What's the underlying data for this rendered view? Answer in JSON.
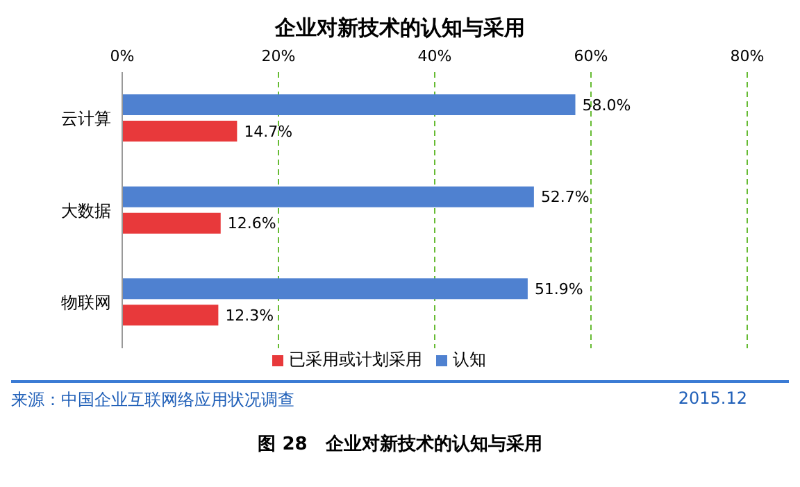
{
  "chart_data": {
    "type": "bar",
    "orientation": "horizontal",
    "title": "企业对新技术的认知与采用",
    "categories": [
      "云计算",
      "大数据",
      "物联网"
    ],
    "series": [
      {
        "name": "认知",
        "color": "#4f81d0",
        "values": [
          58.0,
          52.7,
          51.9
        ],
        "value_labels": [
          "58.0%",
          "52.7%",
          "51.9%"
        ]
      },
      {
        "name": "已采用或计划采用",
        "color": "#e8393b",
        "values": [
          14.7,
          12.6,
          12.3
        ],
        "value_labels": [
          "14.7%",
          "12.6%",
          "12.3%"
        ]
      }
    ],
    "xlim": [
      0,
      80
    ],
    "xticks": [
      {
        "value": 0,
        "label": "0%"
      },
      {
        "value": 20,
        "label": "20%"
      },
      {
        "value": 40,
        "label": "40%"
      },
      {
        "value": 60,
        "label": "60%"
      },
      {
        "value": 80,
        "label": "80%"
      }
    ],
    "grid": "x",
    "legend": "bottom",
    "annotations": [
      "来源：中国企业互联网络应用状况调查",
      "2015.12",
      "图 28　企业对新技术的认知与采用"
    ]
  }
}
